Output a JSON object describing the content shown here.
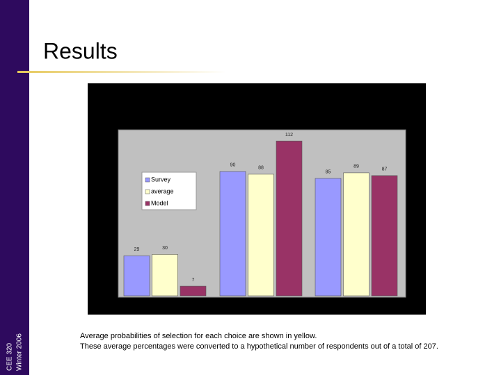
{
  "slide": {
    "title": "Results",
    "sidebar": [
      "CEE 320",
      "Winter 2006"
    ],
    "caption": [
      "Average probabilities of selection for each choice are shown in yellow.",
      "These average percentages were converted to a hypothetical number of respondents out of a total of 207."
    ]
  },
  "chart_data": {
    "type": "bar",
    "categories": [
      null,
      null,
      null
    ],
    "series": [
      {
        "name": "Survey",
        "color": "#9999ff",
        "values": [
          29,
          90,
          85
        ]
      },
      {
        "name": "average",
        "color": "#ffffcc",
        "values": [
          30,
          88,
          89
        ]
      },
      {
        "name": "Model",
        "color": "#993366",
        "values": [
          7,
          112,
          87
        ]
      }
    ]
  }
}
